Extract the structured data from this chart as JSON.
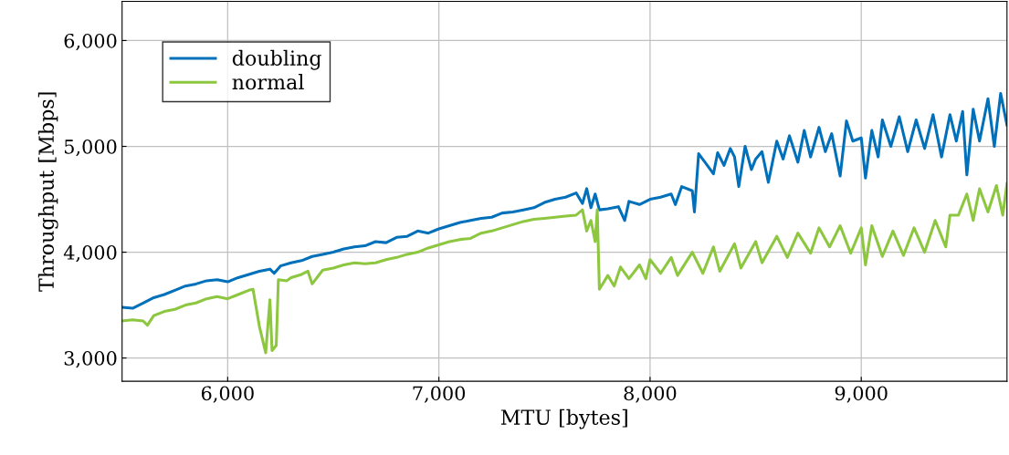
{
  "chart_data": {
    "type": "line",
    "xlabel": "MTU [bytes]",
    "ylabel": "Throughput [Mbps]",
    "xlim": [
      5500,
      9690
    ],
    "ylim": [
      2780,
      6370
    ],
    "xticks": [
      {
        "value": 6000,
        "label": "6,000"
      },
      {
        "value": 7000,
        "label": "7,000"
      },
      {
        "value": 8000,
        "label": "8,000"
      },
      {
        "value": 9000,
        "label": "9,000"
      }
    ],
    "yticks": [
      {
        "value": 3000,
        "label": "3,000"
      },
      {
        "value": 4000,
        "label": "4,000"
      },
      {
        "value": 5000,
        "label": "5,000"
      },
      {
        "value": 6000,
        "label": "6,000"
      }
    ],
    "grid": true,
    "legend": "top left",
    "marker": "none",
    "line_style": "solid",
    "series": [
      {
        "name": "doubling",
        "color": "#0070bb",
        "x": [
          5500,
          5550,
          5600,
          5650,
          5700,
          5750,
          5800,
          5850,
          5900,
          5950,
          6000,
          6050,
          6100,
          6150,
          6200,
          6220,
          6250,
          6300,
          6350,
          6400,
          6450,
          6500,
          6550,
          6600,
          6650,
          6700,
          6750,
          6800,
          6850,
          6900,
          6950,
          7000,
          7050,
          7100,
          7150,
          7200,
          7250,
          7300,
          7350,
          7400,
          7450,
          7500,
          7550,
          7600,
          7650,
          7680,
          7700,
          7720,
          7740,
          7760,
          7800,
          7850,
          7880,
          7900,
          7950,
          8000,
          8050,
          8100,
          8120,
          8150,
          8200,
          8210,
          8230,
          8260,
          8300,
          8320,
          8350,
          8380,
          8400,
          8420,
          8450,
          8480,
          8500,
          8530,
          8560,
          8600,
          8630,
          8660,
          8700,
          8730,
          8760,
          8800,
          8830,
          8860,
          8900,
          8930,
          8960,
          9000,
          9020,
          9050,
          9080,
          9100,
          9140,
          9180,
          9220,
          9260,
          9300,
          9340,
          9380,
          9420,
          9450,
          9480,
          9500,
          9530,
          9560,
          9600,
          9630,
          9660,
          9690
        ],
        "values": [
          3480,
          3470,
          3520,
          3570,
          3600,
          3640,
          3680,
          3700,
          3730,
          3740,
          3720,
          3760,
          3790,
          3820,
          3840,
          3800,
          3870,
          3900,
          3920,
          3960,
          3980,
          4000,
          4030,
          4050,
          4060,
          4100,
          4090,
          4140,
          4150,
          4200,
          4180,
          4220,
          4250,
          4280,
          4300,
          4320,
          4330,
          4370,
          4380,
          4400,
          4420,
          4470,
          4500,
          4520,
          4560,
          4460,
          4600,
          4420,
          4550,
          4400,
          4410,
          4430,
          4300,
          4480,
          4450,
          4500,
          4520,
          4550,
          4450,
          4620,
          4580,
          4380,
          4930,
          4850,
          4740,
          4940,
          4820,
          4980,
          4900,
          4620,
          5000,
          4780,
          4880,
          4950,
          4660,
          5050,
          4880,
          5100,
          4850,
          5150,
          4900,
          5180,
          4950,
          5120,
          4720,
          5240,
          5050,
          5080,
          4700,
          5150,
          4900,
          5250,
          5000,
          5280,
          4950,
          5250,
          4980,
          5300,
          4900,
          5300,
          5050,
          5330,
          4730,
          5350,
          5050,
          5450,
          5000,
          5500,
          5200
        ]
      },
      {
        "name": "normal",
        "color": "#8dc63f",
        "x": [
          5500,
          5550,
          5600,
          5620,
          5650,
          5700,
          5750,
          5800,
          5850,
          5900,
          5950,
          6000,
          6050,
          6100,
          6120,
          6150,
          6180,
          6200,
          6210,
          6230,
          6240,
          6280,
          6300,
          6350,
          6380,
          6400,
          6450,
          6500,
          6550,
          6600,
          6650,
          6700,
          6750,
          6800,
          6850,
          6900,
          6950,
          7000,
          7050,
          7100,
          7150,
          7200,
          7250,
          7300,
          7350,
          7400,
          7450,
          7500,
          7550,
          7600,
          7650,
          7680,
          7700,
          7720,
          7740,
          7750,
          7760,
          7800,
          7830,
          7860,
          7900,
          7950,
          7980,
          8000,
          8050,
          8100,
          8130,
          8200,
          8250,
          8300,
          8330,
          8400,
          8430,
          8500,
          8530,
          8600,
          8650,
          8700,
          8760,
          8800,
          8850,
          8900,
          8950,
          9000,
          9020,
          9050,
          9100,
          9150,
          9200,
          9250,
          9300,
          9350,
          9400,
          9420,
          9460,
          9500,
          9530,
          9560,
          9600,
          9640,
          9670,
          9690
        ],
        "values": [
          3350,
          3360,
          3350,
          3310,
          3400,
          3440,
          3460,
          3500,
          3520,
          3560,
          3580,
          3560,
          3600,
          3640,
          3650,
          3300,
          3050,
          3550,
          3070,
          3120,
          3740,
          3730,
          3760,
          3790,
          3820,
          3700,
          3830,
          3850,
          3880,
          3900,
          3890,
          3900,
          3930,
          3950,
          3980,
          4000,
          4040,
          4070,
          4100,
          4120,
          4130,
          4180,
          4200,
          4230,
          4260,
          4290,
          4310,
          4320,
          4330,
          4340,
          4350,
          4400,
          4200,
          4300,
          4100,
          4400,
          3650,
          3780,
          3680,
          3860,
          3750,
          3880,
          3750,
          3930,
          3800,
          3950,
          3780,
          4000,
          3800,
          4050,
          3820,
          4080,
          3850,
          4100,
          3900,
          4150,
          3950,
          4180,
          3990,
          4230,
          4050,
          4250,
          3990,
          4230,
          3880,
          4250,
          3960,
          4200,
          3970,
          4230,
          4000,
          4300,
          4050,
          4350,
          4350,
          4550,
          4300,
          4600,
          4380,
          4630,
          4350,
          4650
        ]
      }
    ]
  }
}
